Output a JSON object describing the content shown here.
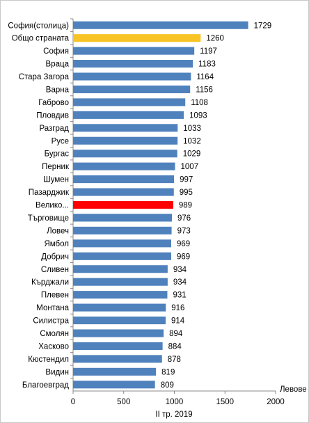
{
  "chart_data": {
    "type": "bar",
    "orientation": "horizontal",
    "x_label": "II тр. 2019",
    "unit_label": "Левове",
    "categories": [
      "София(столица)",
      "Общо страната",
      "София",
      "Враца",
      "Стара Загора",
      "Варна",
      "Габрово",
      "Пловдив",
      "Разград",
      "Русе",
      "Бургас",
      "Перник",
      "Шумен",
      "Пазарджик",
      "Велико...",
      "Търговище",
      "Ловеч",
      "Ямбол",
      "Добрич",
      "Сливен",
      "Кърджали",
      "Плевен",
      "Монтана",
      "Силистра",
      "Смолян",
      "Хасково",
      "Кюстендил",
      "Видин",
      "Благоевград"
    ],
    "values": [
      1729,
      1260,
      1197,
      1183,
      1164,
      1156,
      1108,
      1093,
      1033,
      1032,
      1029,
      1007,
      997,
      995,
      989,
      976,
      973,
      969,
      969,
      934,
      934,
      931,
      916,
      914,
      894,
      884,
      878,
      819,
      809
    ],
    "colors": [
      "#4f81bd",
      "#f7c325",
      "#4f81bd",
      "#4f81bd",
      "#4f81bd",
      "#4f81bd",
      "#4f81bd",
      "#4f81bd",
      "#4f81bd",
      "#4f81bd",
      "#4f81bd",
      "#4f81bd",
      "#4f81bd",
      "#4f81bd",
      "#ff0000",
      "#4f81bd",
      "#4f81bd",
      "#4f81bd",
      "#4f81bd",
      "#4f81bd",
      "#4f81bd",
      "#4f81bd",
      "#4f81bd",
      "#4f81bd",
      "#4f81bd",
      "#4f81bd",
      "#4f81bd",
      "#4f81bd",
      "#4f81bd"
    ],
    "xlim": [
      0,
      2000
    ],
    "xticks": [
      0,
      500,
      1000,
      1500,
      2000
    ]
  }
}
